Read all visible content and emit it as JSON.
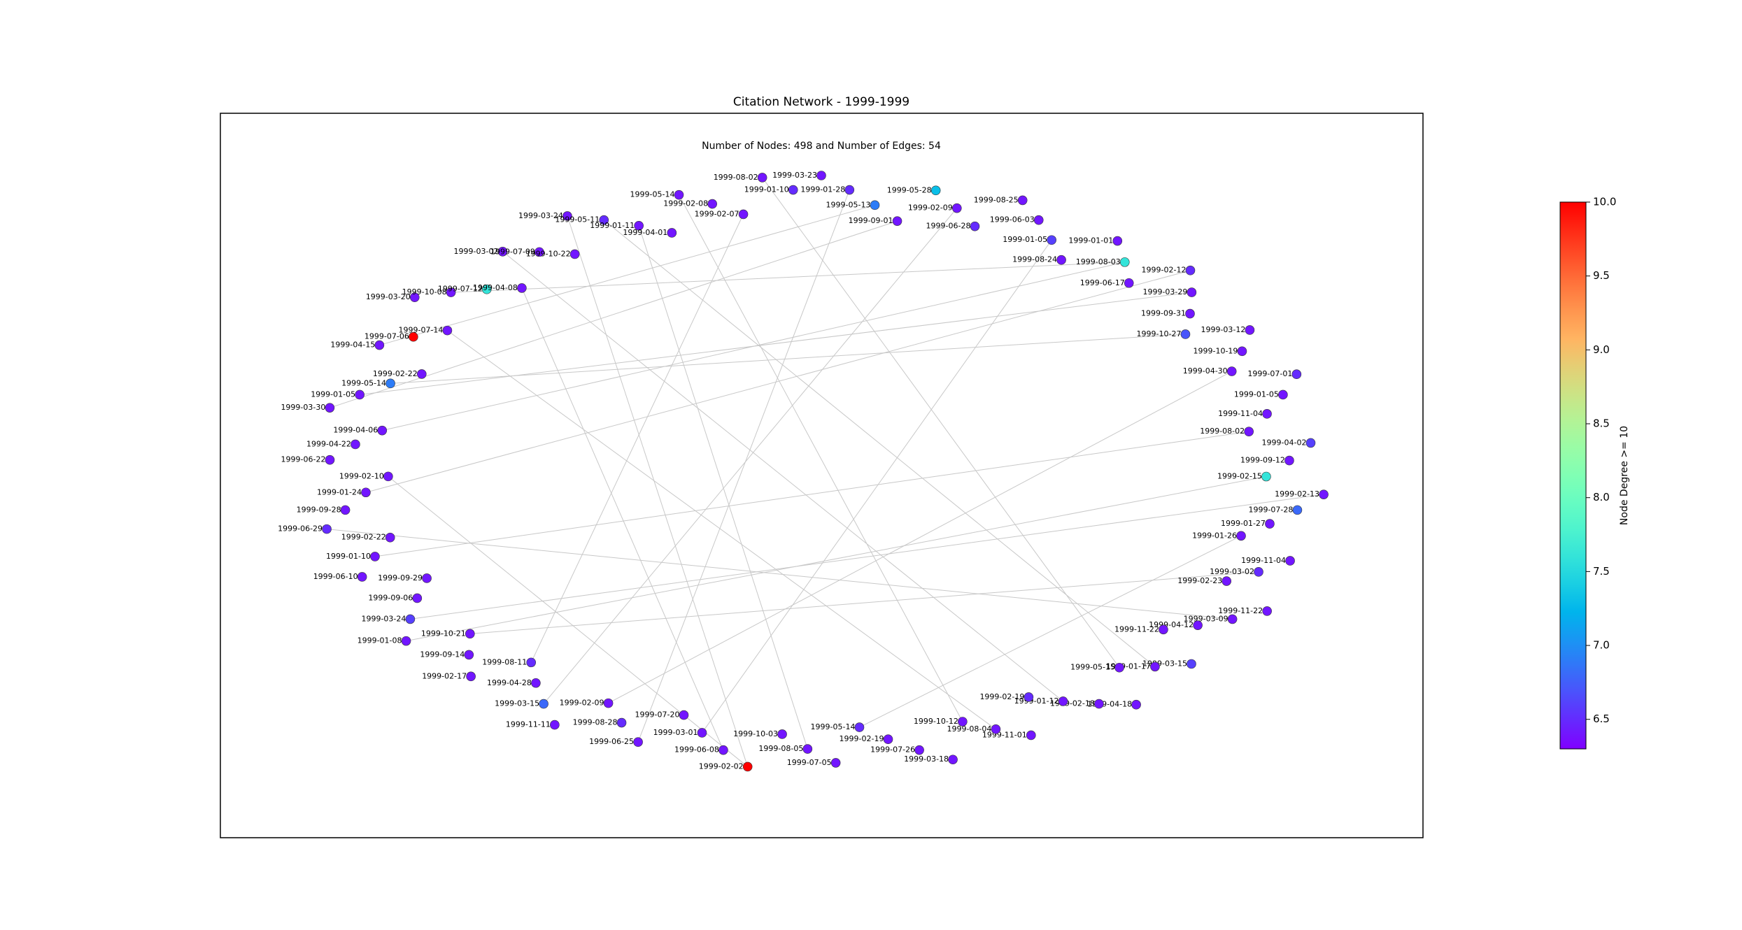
{
  "title": "Citation Network - 1999-1999",
  "subtitle": "Number of Nodes: 498 and Number of Edges: 54",
  "colorbar": {
    "label": "Node Degree >= 10",
    "lim": [
      6.3,
      10.0
    ],
    "ticks": [
      6.5,
      {
        "value": 7,
        "label": "7.0"
      },
      7.5,
      {
        "value": 8,
        "label": "8.0"
      },
      8.5,
      {
        "value": 9,
        "label": "9.0"
      },
      9.5,
      {
        "value": 10,
        "label": "10.0"
      }
    ]
  },
  "nodes": [
    {
      "label": "1999-03-23",
      "degree": 6.4
    },
    {
      "label": "1999-01-28",
      "degree": 6.5
    },
    {
      "label": "1999-05-13",
      "degree": 6.9
    },
    {
      "label": "1999-09-01",
      "degree": 6.4
    },
    {
      "label": "1999-05-28",
      "degree": 7.3
    },
    {
      "label": "1999-02-09",
      "degree": 6.4
    },
    {
      "label": "1999-06-28",
      "degree": 6.5
    },
    {
      "label": "1999-08-25",
      "degree": 6.4
    },
    {
      "label": "1999-06-03",
      "degree": 6.4
    },
    {
      "label": "1999-01-05",
      "degree": 6.6
    },
    {
      "label": "1999-08-24",
      "degree": 6.4
    },
    {
      "label": "1999-01-01",
      "degree": 6.4
    },
    {
      "label": "1999-08-03",
      "degree": 7.6
    },
    {
      "label": "1999-06-17",
      "degree": 6.4
    },
    {
      "label": "1999-02-12",
      "degree": 6.5
    },
    {
      "label": "1999-03-29",
      "degree": 6.4
    },
    {
      "label": "1999-09-31",
      "degree": 6.4
    },
    {
      "label": "1999-10-27",
      "degree": 6.7
    },
    {
      "label": "1999-03-12",
      "degree": 6.4
    },
    {
      "label": "1999-10-19",
      "degree": 6.4
    },
    {
      "label": "1999-04-30",
      "degree": 6.4
    },
    {
      "label": "1999-07-01",
      "degree": 6.5
    },
    {
      "label": "1999-01-05",
      "degree": 6.4
    },
    {
      "label": "1999-11-04",
      "degree": 6.4
    },
    {
      "label": "1999-08-02",
      "degree": 6.4
    },
    {
      "label": "1999-04-02",
      "degree": 6.6
    },
    {
      "label": "1999-09-12",
      "degree": 6.4
    },
    {
      "label": "1999-02-15",
      "degree": 7.6
    },
    {
      "label": "1999-02-13",
      "degree": 6.4
    },
    {
      "label": "1999-07-28",
      "degree": 6.8
    },
    {
      "label": "1999-01-27",
      "degree": 6.4
    },
    {
      "label": "1999-01-26",
      "degree": 6.4
    },
    {
      "label": "1999-11-04",
      "degree": 6.4
    },
    {
      "label": "1999-03-02",
      "degree": 6.5
    },
    {
      "label": "1999-02-23",
      "degree": 6.4
    },
    {
      "label": "1999-11-22",
      "degree": 6.4
    },
    {
      "label": "1999-03-09",
      "degree": 6.4
    },
    {
      "label": "1999-04-12",
      "degree": 6.4
    },
    {
      "label": "1999-11-22",
      "degree": 6.4
    },
    {
      "label": "1999-03-15",
      "degree": 6.6
    },
    {
      "label": "1999-01-17",
      "degree": 6.4
    },
    {
      "label": "1999-05-15",
      "degree": 6.4
    },
    {
      "label": "1999-04-18",
      "degree": 6.4
    },
    {
      "label": "1999-02-18",
      "degree": 6.4
    },
    {
      "label": "1999-01-12",
      "degree": 6.4
    },
    {
      "label": "1999-02-19",
      "degree": 6.5
    },
    {
      "label": "1999-11-01",
      "degree": 6.4
    },
    {
      "label": "1999-08-04",
      "degree": 6.4
    },
    {
      "label": "1999-10-12",
      "degree": 6.4
    },
    {
      "label": "1999-03-18",
      "degree": 6.4
    },
    {
      "label": "1999-07-26",
      "degree": 6.4
    },
    {
      "label": "1999-02-19",
      "degree": 6.4
    },
    {
      "label": "1999-05-14",
      "degree": 6.5
    },
    {
      "label": "1999-07-05",
      "degree": 6.4
    },
    {
      "label": "1999-08-05",
      "degree": 6.4
    },
    {
      "label": "1999-10-03",
      "degree": 6.4
    },
    {
      "label": "1999-02-02",
      "degree": 10.0
    },
    {
      "label": "1999-06-08",
      "degree": 6.4
    },
    {
      "label": "1999-03-01",
      "degree": 6.4
    },
    {
      "label": "1999-07-20",
      "degree": 6.4
    },
    {
      "label": "1999-06-25",
      "degree": 6.4
    },
    {
      "label": "1999-08-28",
      "degree": 6.5
    },
    {
      "label": "1999-02-09",
      "degree": 6.4
    },
    {
      "label": "1999-11-11",
      "degree": 6.4
    },
    {
      "label": "1999-03-15",
      "degree": 6.8
    },
    {
      "label": "1999-04-28",
      "degree": 6.4
    },
    {
      "label": "1999-08-11",
      "degree": 6.5
    },
    {
      "label": "1999-02-17",
      "degree": 6.4
    },
    {
      "label": "1999-09-14",
      "degree": 6.4
    },
    {
      "label": "1999-10-21",
      "degree": 6.4
    },
    {
      "label": "1999-01-08",
      "degree": 6.4
    },
    {
      "label": "1999-03-24",
      "degree": 6.6
    },
    {
      "label": "1999-09-06",
      "degree": 6.4
    },
    {
      "label": "1999-09-29",
      "degree": 6.4
    },
    {
      "label": "1999-06-10",
      "degree": 6.4
    },
    {
      "label": "1999-01-10",
      "degree": 6.4
    },
    {
      "label": "1999-02-22",
      "degree": 6.4
    },
    {
      "label": "1999-06-29",
      "degree": 6.5
    },
    {
      "label": "1999-09-28",
      "degree": 6.4
    },
    {
      "label": "1999-01-24",
      "degree": 6.4
    },
    {
      "label": "1999-02-10",
      "degree": 6.4
    },
    {
      "label": "1999-06-22",
      "degree": 6.4
    },
    {
      "label": "1999-04-22",
      "degree": 6.4
    },
    {
      "label": "1999-04-06",
      "degree": 6.4
    },
    {
      "label": "1999-03-30",
      "degree": 6.4
    },
    {
      "label": "1999-01-05",
      "degree": 6.4
    },
    {
      "label": "1999-05-14",
      "degree": 6.9
    },
    {
      "label": "1999-02-22",
      "degree": 6.4
    },
    {
      "label": "1999-04-15",
      "degree": 6.4
    },
    {
      "label": "1999-07-06",
      "degree": 10.0
    },
    {
      "label": "1999-07-14",
      "degree": 6.4
    },
    {
      "label": "1999-03-20",
      "degree": 6.4
    },
    {
      "label": "1999-10-08",
      "degree": 6.4
    },
    {
      "label": "1999-07-12",
      "degree": 7.6
    },
    {
      "label": "1999-04-08",
      "degree": 6.4
    },
    {
      "label": "1999-03-02",
      "degree": 6.4
    },
    {
      "label": "1999-07-09",
      "degree": 6.4
    },
    {
      "label": "1999-10-22",
      "degree": 6.4
    },
    {
      "label": "1999-03-24",
      "degree": 6.4
    },
    {
      "label": "1999-05-11",
      "degree": 6.5
    },
    {
      "label": "1999-01-11",
      "degree": 6.4
    },
    {
      "label": "1999-04-01",
      "degree": 6.4
    },
    {
      "label": "1999-05-14",
      "degree": 6.4
    },
    {
      "label": "1999-02-08",
      "degree": 6.4
    },
    {
      "label": "1999-02-07",
      "degree": 6.4
    },
    {
      "label": "1999-08-02",
      "degree": 6.4
    },
    {
      "label": "1999-01-10",
      "degree": 6.5
    }
  ],
  "edges": [
    [
      1,
      60
    ],
    [
      2,
      88
    ],
    [
      12,
      92
    ],
    [
      12,
      83
    ],
    [
      15,
      85
    ],
    [
      17,
      86
    ],
    [
      24,
      75
    ],
    [
      27,
      70
    ],
    [
      31,
      52
    ],
    [
      33,
      69
    ],
    [
      40,
      99
    ],
    [
      44,
      95
    ],
    [
      48,
      102
    ],
    [
      56,
      98
    ],
    [
      56,
      80
    ],
    [
      58,
      9
    ],
    [
      62,
      20
    ],
    [
      64,
      5
    ],
    [
      66,
      104
    ],
    [
      71,
      28
    ],
    [
      77,
      36
    ],
    [
      79,
      14
    ],
    [
      84,
      3
    ],
    [
      90,
      47
    ],
    [
      94,
      57
    ],
    [
      100,
      54
    ],
    [
      105,
      41
    ],
    [
      108,
      49
    ]
  ]
}
